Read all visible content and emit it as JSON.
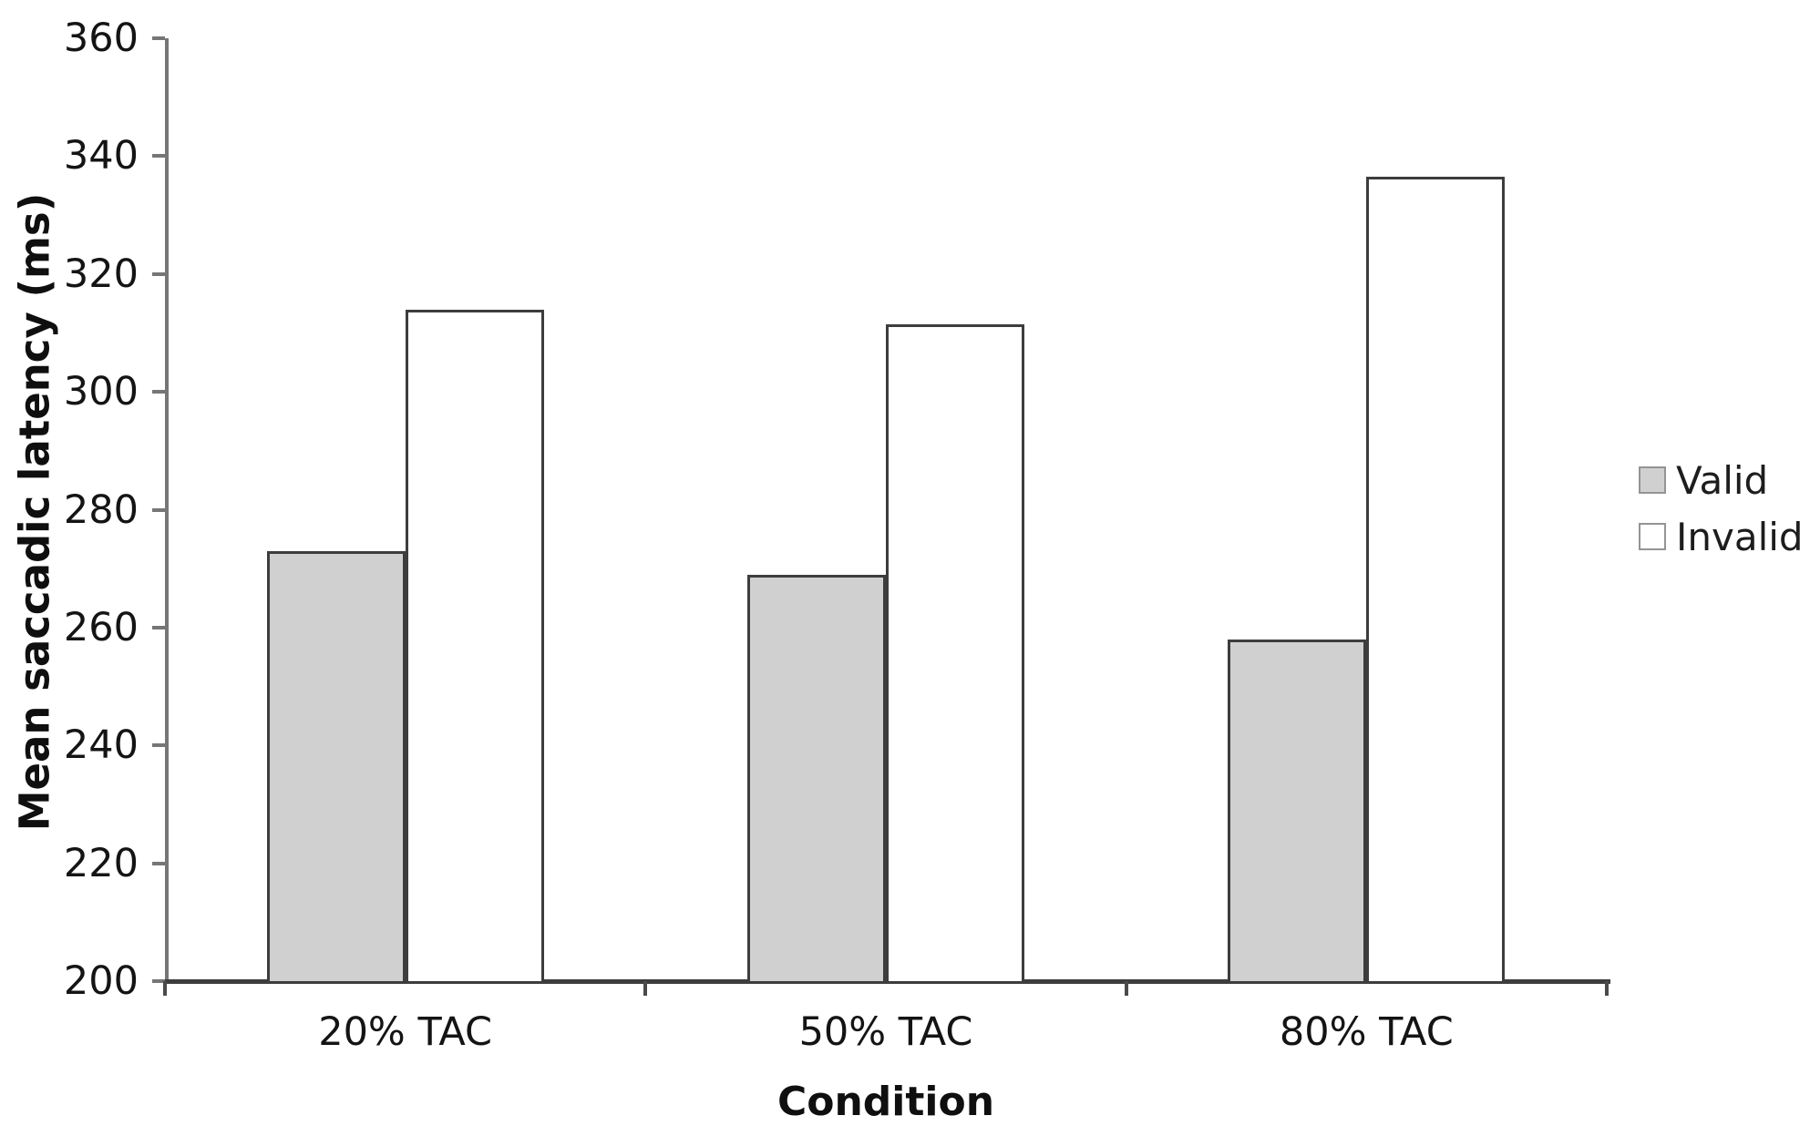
{
  "chart_data": {
    "type": "bar",
    "title": "",
    "categories": [
      "20% TAC",
      "50% TAC",
      "80% TAC"
    ],
    "series": [
      {
        "name": "Valid",
        "values": [
          273,
          269,
          258
        ],
        "fill": "#d0d0d0"
      },
      {
        "name": "Invalid",
        "values": [
          314,
          311.5,
          336.5
        ],
        "fill": "#ffffff"
      }
    ],
    "xlabel": "Condition",
    "ylabel": "Mean saccadic latency (ms)",
    "ylim": [
      200,
      360
    ],
    "ytick_step": 20,
    "ytick_labels": [
      "200",
      "220",
      "240",
      "260",
      "280",
      "300",
      "320",
      "340",
      "360"
    ],
    "grid": false,
    "legend_position": "right",
    "legend_items": [
      "Valid",
      "Invalid"
    ],
    "colors": {
      "bar_border": "#3d3d3d",
      "valid_fill": "#d0d0d0",
      "invalid_fill": "#ffffff",
      "y_axis": "#767676",
      "x_axis": "#3d3d3d",
      "text": "#141414",
      "background": "#ffffff"
    }
  }
}
